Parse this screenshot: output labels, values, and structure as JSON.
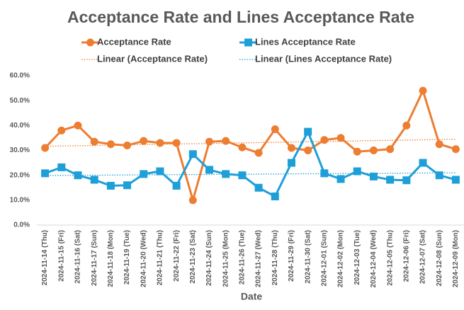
{
  "chart_data": {
    "type": "line",
    "title": "Acceptance Rate and Lines Acceptance Rate",
    "x_label": "Date",
    "categories": [
      "2024-11-14 (Thu)",
      "2024-11-15 (Fri)",
      "2024-11-16 (Sat)",
      "2024-11-17 (Sun)",
      "2024-11-18 (Mon)",
      "2024-11-19 (Tue)",
      "2024-11-20 (Wed)",
      "2024-11-21 (Thu)",
      "2024-11-22 (Fri)",
      "2024-11-23 (Sat)",
      "2024-11-24 (Sun)",
      "2024-11-25 (Mon)",
      "2024-11-26 (Tue)",
      "2024-11-27 (Wed)",
      "2024-11-28 (Thu)",
      "2024-11-29 (Fri)",
      "2024-11-30 (Sat)",
      "2024-12-01 (Sun)",
      "2024-12-02 (Mon)",
      "2024-12-03 (Tue)",
      "2024-12-04 (Wed)",
      "2024-12-05 (Thu)",
      "2024-12-06 (Fri)",
      "2024-12-07 (Sat)",
      "2024-12-08 (Sun)",
      "2024-12-09 (Mon)"
    ],
    "series": [
      {
        "name": "Acceptance Rate",
        "color": "#ed7d31",
        "marker": "circle",
        "trendline": "Linear (Acceptance Rate)",
        "values": [
          31,
          38,
          40,
          33.5,
          32.5,
          32,
          33.8,
          33,
          33,
          10,
          33.5,
          33.8,
          31.2,
          29,
          38.5,
          31,
          30,
          34.2,
          35,
          29.5,
          30,
          30.5,
          40,
          54,
          32.5,
          30.5
        ]
      },
      {
        "name": "Lines Acceptance Rate",
        "color": "#1e9fd8",
        "marker": "square",
        "trendline": "Linear (Lines Acceptance Rate)",
        "values": [
          20.8,
          23.2,
          20,
          18.2,
          15.8,
          16,
          20.5,
          21.6,
          15.8,
          28.5,
          22.2,
          20.5,
          20,
          15,
          11.5,
          25,
          37.5,
          20.8,
          18.5,
          21.6,
          19.5,
          18.2,
          18,
          25,
          20,
          18.2
        ]
      }
    ],
    "ylim": [
      0,
      60
    ],
    "yticks": [
      {
        "value": 0,
        "label": "0.0%"
      },
      {
        "value": 10,
        "label": "10.0%"
      },
      {
        "value": 20,
        "label": "20.0%"
      },
      {
        "value": 30,
        "label": "30.0%"
      },
      {
        "value": 40,
        "label": "40.0%"
      },
      {
        "value": 50,
        "label": "50.0%"
      },
      {
        "value": 60,
        "label": "60.0%"
      }
    ],
    "grid": false
  }
}
